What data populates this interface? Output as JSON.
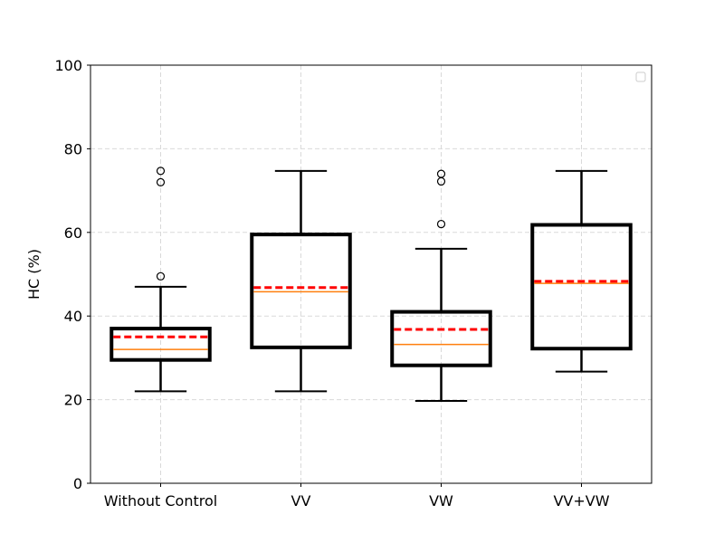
{
  "chart_data": {
    "type": "box",
    "categories": [
      "Without Control",
      "VV",
      "VW",
      "VV+VW"
    ],
    "boxes": [
      {
        "whisker_low": 22,
        "q1": 29.5,
        "median": 32,
        "mean": 35,
        "q3": 37,
        "whisker_high": 47,
        "outliers": [
          49.5,
          72,
          74.7
        ]
      },
      {
        "whisker_low": 22,
        "q1": 32.5,
        "median": 45.8,
        "mean": 46.8,
        "q3": 59.5,
        "whisker_high": 74.7,
        "outliers": []
      },
      {
        "whisker_low": 19.7,
        "q1": 28.2,
        "median": 33.2,
        "mean": 36.8,
        "q3": 41,
        "whisker_high": 56.1,
        "outliers": [
          62,
          72.2,
          74
        ]
      },
      {
        "whisker_low": 26.7,
        "q1": 32.2,
        "median": 47.8,
        "mean": 48.3,
        "q3": 61.8,
        "whisker_high": 74.7,
        "outliers": []
      }
    ],
    "ylabel": "HC (%)",
    "xlabel": "",
    "title": "",
    "ylim": [
      0,
      100
    ],
    "yticks": [
      0,
      20,
      40,
      60,
      80,
      100
    ],
    "grid": true,
    "legend": {
      "placement": "top-right",
      "entries": []
    },
    "colors": {
      "box": "#000000",
      "median": "#ff7f0e",
      "mean": "#ff0000",
      "grid": "#d9d9d9"
    }
  }
}
